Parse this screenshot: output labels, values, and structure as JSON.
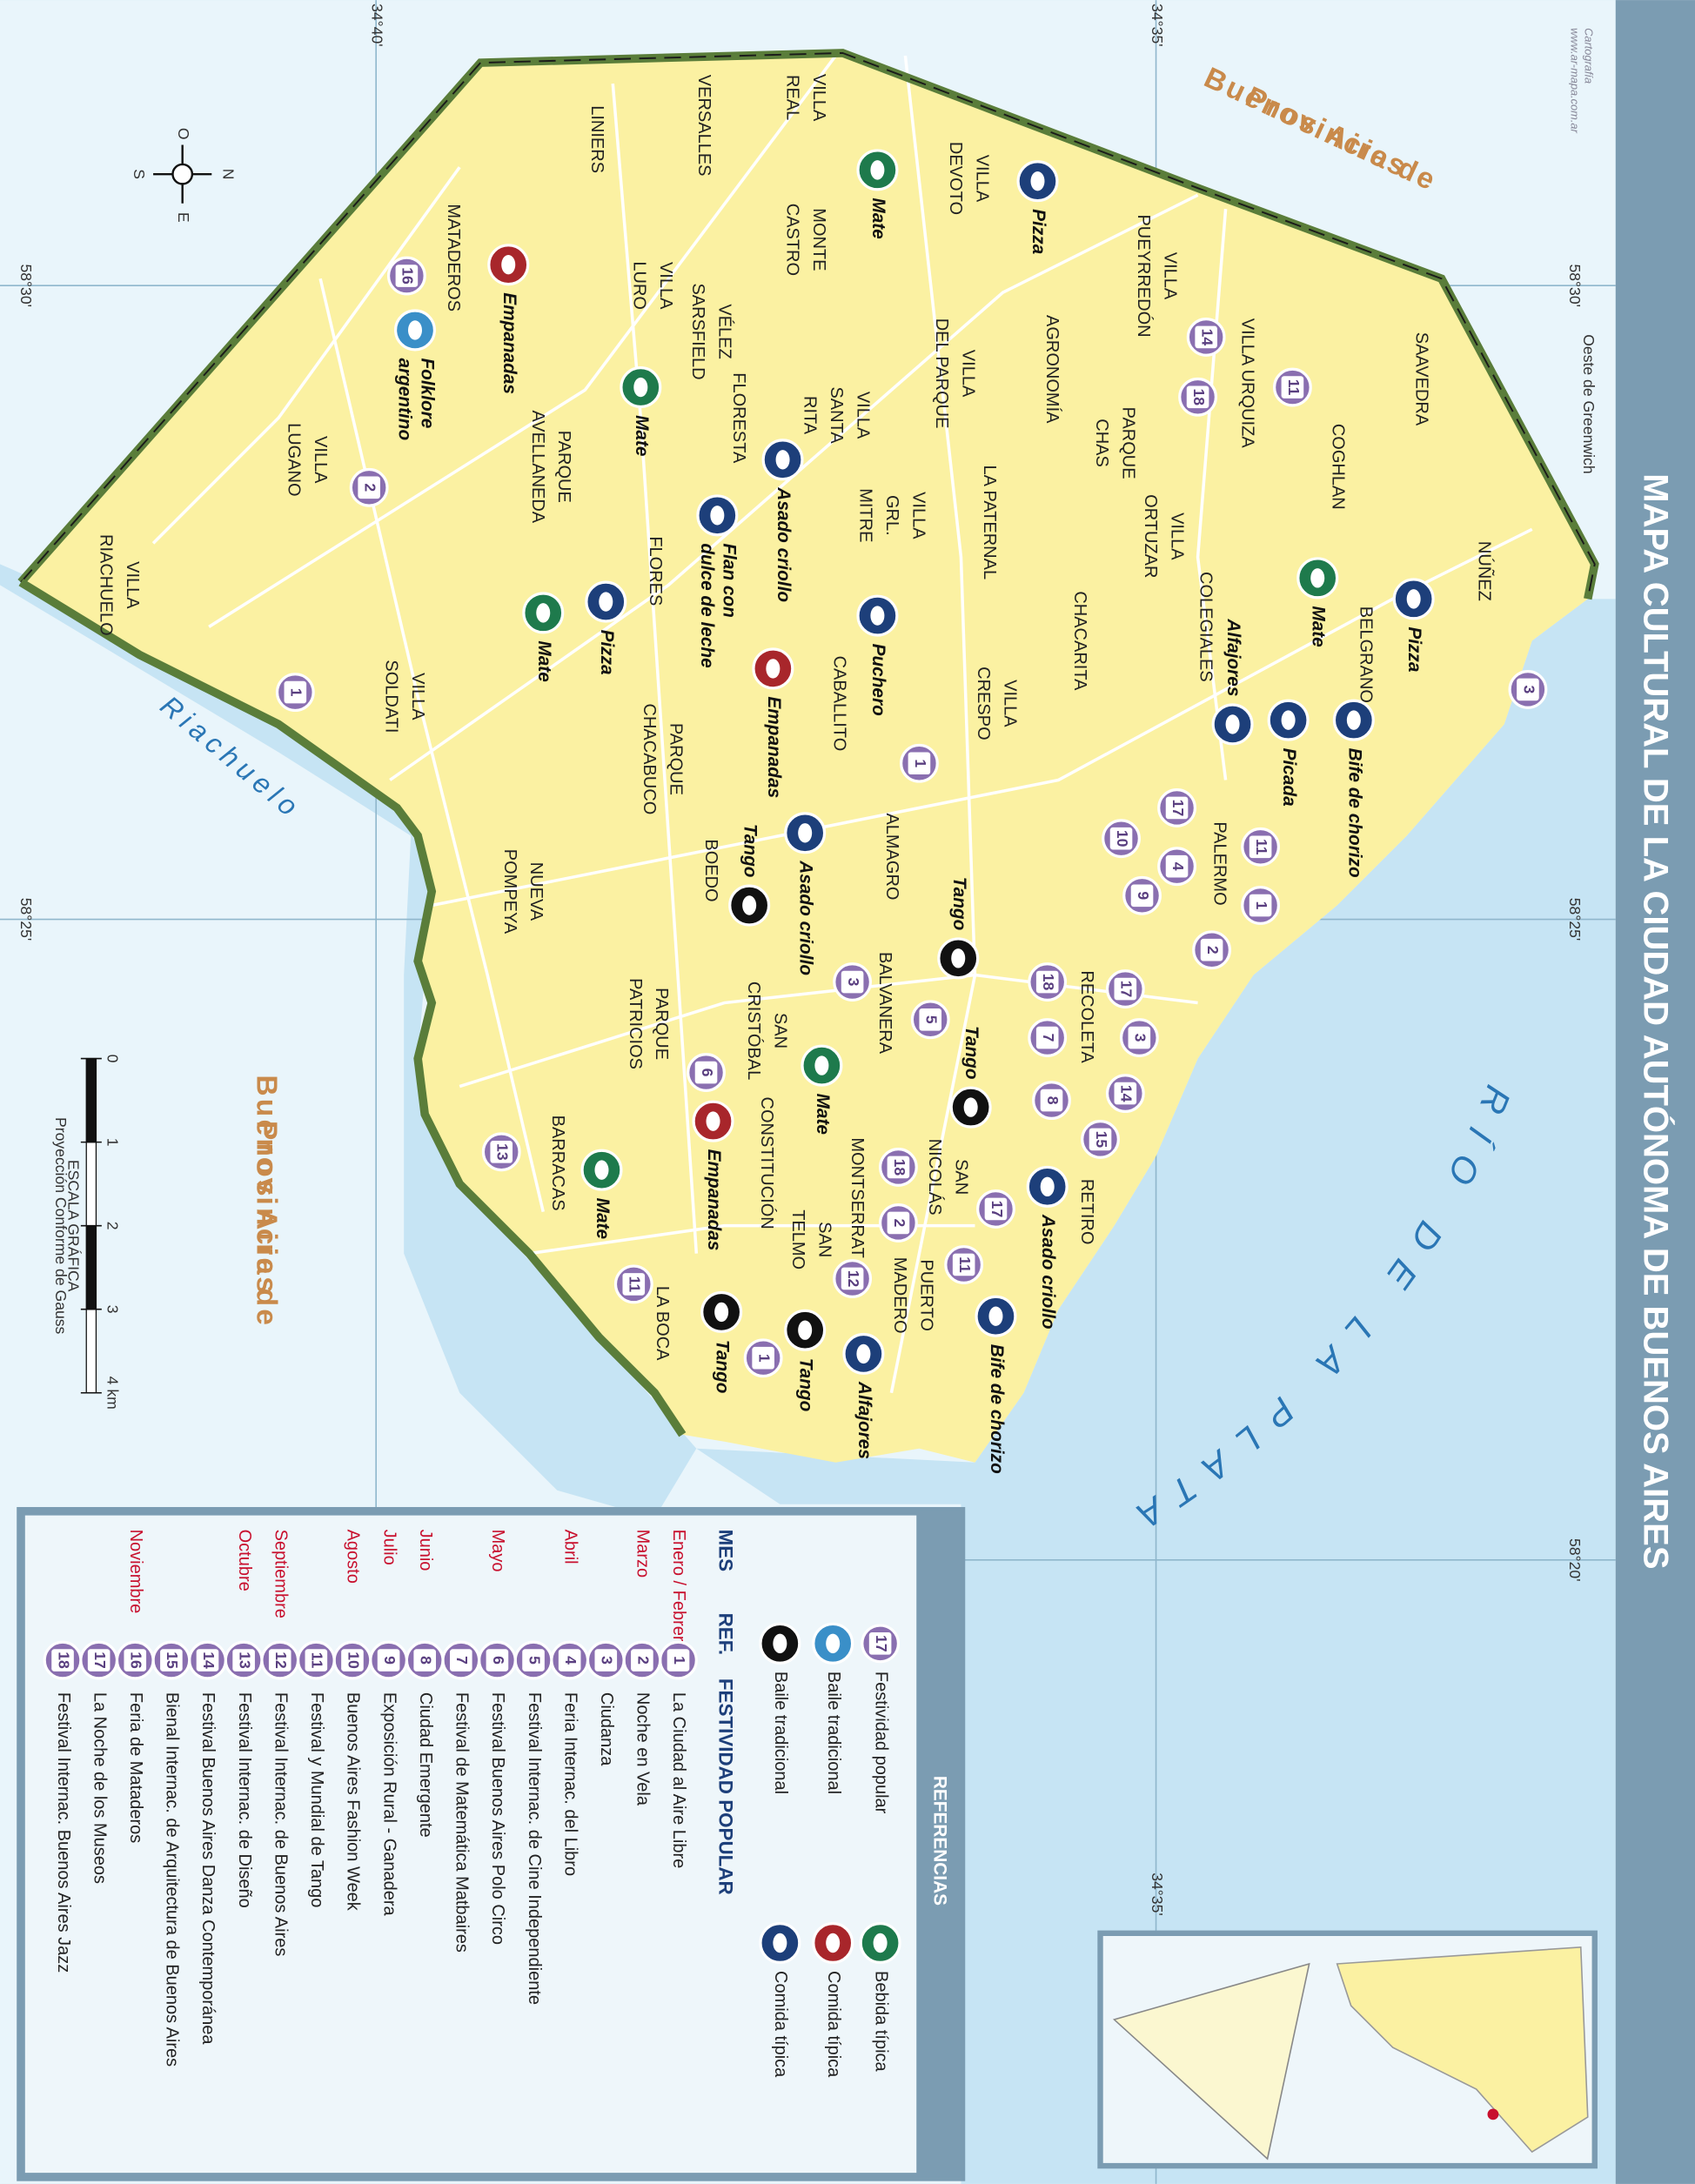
{
  "title": "MAPA CULTURAL DE LA CIUDAD AUTÓNOMA DE BUENOS AIRES",
  "credit": [
    "Cartografía",
    "www.ar-mapa.com.ar"
  ],
  "greenwich": "Oeste de Greenwich",
  "river_label": "RÍO DE LA PLATA",
  "riachuelo_label": "Riachuelo",
  "province_labels": [
    [
      "Provincia de",
      "Buenos Aires"
    ],
    [
      "Provincia de",
      "Buenos Aires"
    ]
  ],
  "grid_labels": [
    "34°40'",
    "34°35'",
    "58°30'",
    "58°25'",
    "58°30'",
    "58°25'",
    "58°20'",
    "34°35'"
  ],
  "compass": [
    "O",
    "N",
    "E",
    "S"
  ],
  "scale": {
    "title": "ESCALA GRÁFICA",
    "subtitle": "Proyección Conforme de Gauss",
    "ticks": [
      0,
      1,
      2,
      3,
      {
        "value": 4,
        "label": "4 km"
      }
    ]
  },
  "neighborhoods": [
    [
      "VILLA",
      "REAL"
    ],
    [
      "VERSALLES"
    ],
    [
      "LINIERS"
    ],
    [
      "MONTE",
      "CASTRO"
    ],
    [
      "VILLA",
      "DEVOTO"
    ],
    [
      "VILLA",
      "LURO"
    ],
    [
      "MATADEROS"
    ],
    [
      "VÉLEZ",
      "SARSFIELD"
    ],
    [
      "VILLA",
      "DEL PARQUE"
    ],
    [
      "AGRONOMÍA"
    ],
    [
      "VILLA",
      "PUEYRREDÓN"
    ],
    [
      "VILLA URQUIZA"
    ],
    [
      "SAAVEDRA"
    ],
    [
      "COGHLAN"
    ],
    [
      "PARQUE",
      "CHAS"
    ],
    [
      "VILLA",
      "ORTUZAR"
    ],
    [
      "FLORESTA"
    ],
    [
      "VILLA",
      "SANTA",
      "RITA"
    ],
    [
      "VILLA",
      "GRL.",
      "MITRE"
    ],
    [
      "LA PATERNAL"
    ],
    [
      "PARQUE",
      "AVELLANEDA"
    ],
    [
      "VILLA",
      "LUGANO"
    ],
    [
      "VILLA",
      "RIACHUELO"
    ],
    [
      "VILLA",
      "SOLDATI"
    ],
    [
      "FLORES"
    ],
    [
      "CHACARITA"
    ],
    [
      "COLEGIALES"
    ],
    [
      "NÚÑEZ"
    ],
    [
      "BELGRANO"
    ],
    [
      "VILLA",
      "CRESPO"
    ],
    [
      "CABALLITO"
    ],
    [
      "PARQUE",
      "CHACABUCO"
    ],
    [
      "PALERMO"
    ],
    [
      "ALMAGRO"
    ],
    [
      "BOEDO"
    ],
    [
      "NUEVA",
      "POMPEYA"
    ],
    [
      "RECOLETA"
    ],
    [
      "BALVANERA"
    ],
    [
      "SAN",
      "CRISTÓBAL"
    ],
    [
      "PARQUE",
      "PATRICIOS"
    ],
    [
      "BARRACAS"
    ],
    [
      "MONTSERRAT"
    ],
    [
      "SAN",
      "NICOLÁS"
    ],
    [
      "RETIRO"
    ],
    [
      "CONSTITUCIÓN"
    ],
    [
      "SAN",
      "TELMO"
    ],
    [
      "PUERTO",
      "MADERO"
    ],
    [
      "LA BOCA"
    ]
  ],
  "icons": [
    {
      "label": [
        "Mate"
      ],
      "color": "#1e7a4c"
    },
    {
      "label": [
        "Pizza"
      ],
      "color": "#1d3f7a"
    },
    {
      "label": [
        "Empanadas"
      ],
      "color": "#a8262b"
    },
    {
      "label": [
        "Folklore",
        "argentino"
      ],
      "color": "#3a8fc8"
    },
    {
      "label": [
        "Mate"
      ],
      "color": "#1e7a4c"
    },
    {
      "label": [
        "Asado criollo"
      ],
      "color": "#1d3f7a"
    },
    {
      "label": [
        "Flan con",
        "dulce de leche"
      ],
      "color": "#1d3f7a"
    },
    {
      "label": [
        "Mate"
      ],
      "color": "#1e7a4c"
    },
    {
      "label": [
        "Pizza"
      ],
      "color": "#1d3f7a"
    },
    {
      "label": [
        "Puchero"
      ],
      "color": "#1d3f7a"
    },
    {
      "label": [
        "Pizza"
      ],
      "color": "#1d3f7a"
    },
    {
      "label": [
        "Mate"
      ],
      "color": "#1e7a4c"
    },
    {
      "label": [
        "Empanadas"
      ],
      "color": "#a8262b"
    },
    {
      "label": [
        "Alfajores"
      ],
      "color": "#1d3f7a"
    },
    {
      "label": [
        "Picada"
      ],
      "color": "#1d3f7a"
    },
    {
      "label": [
        "Bife de chorizo"
      ],
      "color": "#1d3f7a"
    },
    {
      "label": [
        "Asado criollo"
      ],
      "color": "#1d3f7a"
    },
    {
      "label": [
        "Tango"
      ],
      "color": "#111111"
    },
    {
      "label": [
        "Tango"
      ],
      "color": "#111111"
    },
    {
      "label": [
        "Tango"
      ],
      "color": "#111111"
    },
    {
      "label": [
        "Mate"
      ],
      "color": "#1e7a4c"
    },
    {
      "label": [
        "Empanadas"
      ],
      "color": "#a8262b"
    },
    {
      "label": [
        "Mate"
      ],
      "color": "#1e7a4c"
    },
    {
      "label": [
        "Asado criollo"
      ],
      "color": "#1d3f7a"
    },
    {
      "label": [
        "Bife de chorizo"
      ],
      "color": "#1d3f7a"
    },
    {
      "label": [
        "Tango"
      ],
      "color": "#111111"
    },
    {
      "label": [
        "Tango"
      ],
      "color": "#111111"
    },
    {
      "label": [
        "Alfajores"
      ],
      "color": "#1d3f7a"
    }
  ],
  "badges": [
    16,
    2,
    1,
    14,
    18,
    11,
    3,
    1,
    17,
    10,
    4,
    11,
    9,
    1,
    2,
    17,
    18,
    3,
    7,
    3,
    5,
    14,
    8,
    15,
    6,
    13,
    18,
    2,
    17,
    11,
    12,
    11,
    1
  ],
  "legend": {
    "title": "REFERENCIAS",
    "symbols": [
      {
        "badge": 17,
        "label": "Festividad popular"
      },
      {
        "color": "#1e7a4c",
        "label": "Bebida típica"
      },
      {
        "color": "#3a8fc8",
        "label": "Baile tradicional"
      },
      {
        "color": "#a8262b",
        "label": "Comida típica"
      },
      {
        "color": "#111111",
        "label": "Baile tradicional"
      },
      {
        "color": "#1d3f7a",
        "label": "Comida típica"
      }
    ],
    "header": [
      "MES",
      "REF.",
      "FESTIVIDAD POPULAR"
    ],
    "rows": [
      {
        "month": "Enero / Febrero",
        "ref": 1,
        "name": "La Ciudad al Aire Libre"
      },
      {
        "month": "Marzo",
        "ref": 2,
        "name": "Noche en Vela"
      },
      {
        "month": null,
        "ref": 3,
        "name": "Ciudanza"
      },
      {
        "month": "Abril",
        "ref": 4,
        "name": "Feria Internac. del Libro"
      },
      {
        "month": null,
        "ref": 5,
        "name": "Festival Internac. de Cine Independiente"
      },
      {
        "month": "Mayo",
        "ref": 6,
        "name": "Festival Buenos Aires Polo Circo"
      },
      {
        "month": null,
        "ref": 7,
        "name": "Festival de Matemática Matbaires"
      },
      {
        "month": "Junio",
        "ref": 8,
        "name": "Ciudad Emergente"
      },
      {
        "month": "Julio",
        "ref": 9,
        "name": "Exposición Rural - Ganadera"
      },
      {
        "month": "Agosto",
        "ref": 10,
        "name": "Buenos Aires Fashion Week"
      },
      {
        "month": null,
        "ref": 11,
        "name": "Festival y Mundial de Tango"
      },
      {
        "month": "Septiembre",
        "ref": 12,
        "name": "Festival Internac. de Buenos Aires"
      },
      {
        "month": "Octubre",
        "ref": 13,
        "name": "Festival Internac. de Diseño"
      },
      {
        "month": null,
        "ref": 14,
        "name": "Festival Buenos Aires Danza Contemporánea"
      },
      {
        "month": null,
        "ref": 15,
        "name": "Bienal Internac. de Arquitectura de Buenos Aires"
      },
      {
        "month": "Noviembre",
        "ref": 16,
        "name": "Feria de Mataderos"
      },
      {
        "month": null,
        "ref": 17,
        "name": "La Noche de los Museos"
      },
      {
        "month": null,
        "ref": 18,
        "name": "Festival Internac. Buenos Aires Jazz"
      }
    ]
  }
}
